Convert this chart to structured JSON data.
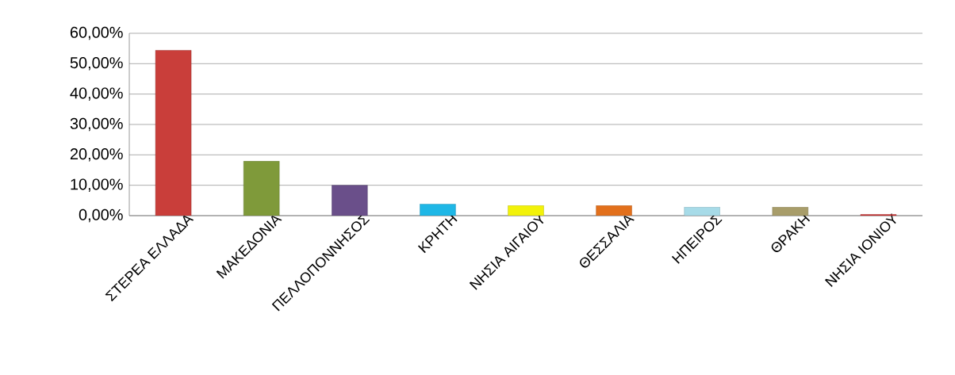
{
  "chart_data": {
    "type": "bar",
    "categories": [
      "ΣΤΕΡΕΑ ΕΛΛΑΔΑ",
      "ΜΑΚΕΔΟΝΙΑ",
      "ΠΕΛΛΟΠΟΝΝΗΣΟΣ",
      "ΚΡΗΤΗ",
      "ΝΗΣΙΑ ΑΙΓΑΙΟΥ",
      "ΘΕΣΣΑΛΙΑ",
      "ΗΠΕΙΡΟΣ",
      "ΘΡΑΚΗ",
      "ΝΗΣΙΑ ΙΟΝΙΟΥ"
    ],
    "values": [
      54.4,
      17.9,
      10.0,
      3.8,
      3.3,
      3.3,
      2.8,
      2.8,
      0.4
    ],
    "colors": [
      "#c93e3a",
      "#7f9a3a",
      "#6a4f8a",
      "#1fb7e6",
      "#f2f20a",
      "#e2701c",
      "#a7dbe8",
      "#a89d6a",
      "#d03030"
    ],
    "ylim": [
      0,
      60
    ],
    "yticks": [
      {
        "value": 0,
        "label": "0,00%"
      },
      {
        "value": 10,
        "label": "10,00%"
      },
      {
        "value": 20,
        "label": "20,00%"
      },
      {
        "value": 30,
        "label": "30,00%"
      },
      {
        "value": 40,
        "label": "40,00%"
      },
      {
        "value": 50,
        "label": "50,00%"
      },
      {
        "value": 60,
        "label": "60,00%"
      }
    ],
    "grid": "y"
  }
}
